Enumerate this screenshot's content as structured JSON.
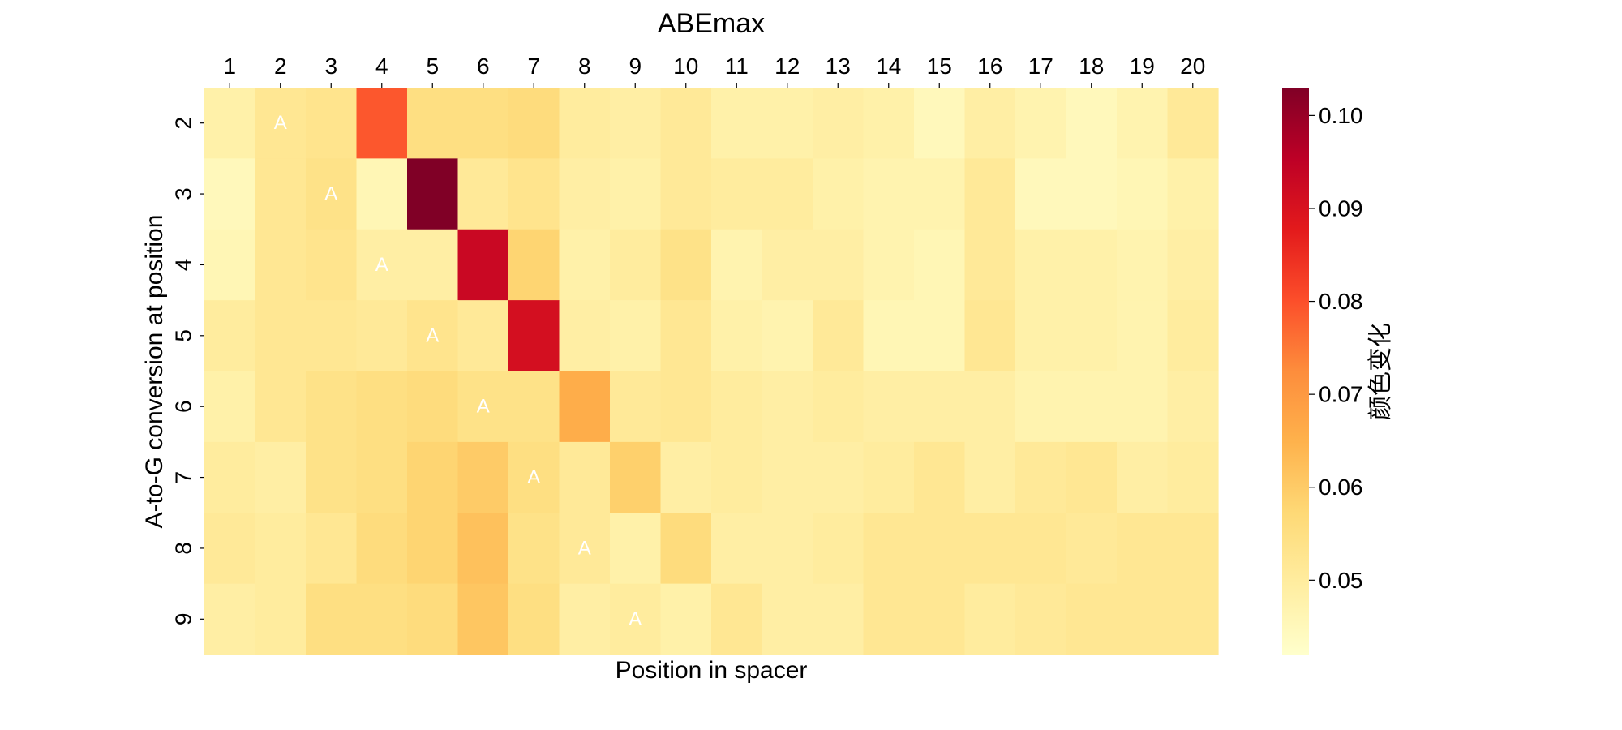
{
  "chart_data": {
    "type": "heatmap",
    "title": "ABEmax",
    "xlabel": "Position in spacer",
    "ylabel": "A-to-G conversion at position",
    "x_categories": [
      "1",
      "2",
      "3",
      "4",
      "5",
      "6",
      "7",
      "8",
      "9",
      "10",
      "11",
      "12",
      "13",
      "14",
      "15",
      "16",
      "17",
      "18",
      "19",
      "20"
    ],
    "y_categories": [
      "2",
      "3",
      "4",
      "5",
      "6",
      "7",
      "8",
      "9"
    ],
    "values": [
      [
        0.048,
        0.052,
        0.053,
        0.079,
        0.055,
        0.055,
        0.056,
        0.05,
        0.049,
        0.051,
        0.048,
        0.048,
        0.049,
        0.048,
        0.045,
        0.049,
        0.047,
        0.045,
        0.047,
        0.051
      ],
      [
        0.045,
        0.052,
        0.054,
        0.046,
        0.103,
        0.051,
        0.053,
        0.049,
        0.048,
        0.051,
        0.05,
        0.05,
        0.048,
        0.047,
        0.047,
        0.051,
        0.045,
        0.045,
        0.046,
        0.048
      ],
      [
        0.046,
        0.052,
        0.053,
        0.049,
        0.049,
        0.093,
        0.058,
        0.048,
        0.05,
        0.054,
        0.047,
        0.049,
        0.049,
        0.047,
        0.046,
        0.051,
        0.048,
        0.048,
        0.047,
        0.049
      ],
      [
        0.05,
        0.052,
        0.052,
        0.051,
        0.053,
        0.051,
        0.091,
        0.049,
        0.048,
        0.052,
        0.048,
        0.047,
        0.051,
        0.046,
        0.046,
        0.052,
        0.048,
        0.048,
        0.047,
        0.05
      ],
      [
        0.048,
        0.052,
        0.054,
        0.055,
        0.056,
        0.054,
        0.054,
        0.066,
        0.051,
        0.052,
        0.05,
        0.049,
        0.05,
        0.049,
        0.049,
        0.049,
        0.047,
        0.047,
        0.047,
        0.049
      ],
      [
        0.05,
        0.049,
        0.054,
        0.055,
        0.058,
        0.06,
        0.055,
        0.051,
        0.059,
        0.049,
        0.05,
        0.049,
        0.049,
        0.05,
        0.052,
        0.049,
        0.051,
        0.052,
        0.049,
        0.05
      ],
      [
        0.051,
        0.05,
        0.052,
        0.056,
        0.058,
        0.062,
        0.054,
        0.051,
        0.048,
        0.056,
        0.049,
        0.049,
        0.05,
        0.052,
        0.052,
        0.052,
        0.052,
        0.051,
        0.052,
        0.052
      ],
      [
        0.049,
        0.05,
        0.055,
        0.055,
        0.056,
        0.061,
        0.055,
        0.049,
        0.05,
        0.048,
        0.052,
        0.049,
        0.049,
        0.052,
        0.052,
        0.05,
        0.051,
        0.052,
        0.052,
        0.052
      ]
    ],
    "annotations": [
      {
        "row": "2",
        "col": "2",
        "text": "A"
      },
      {
        "row": "3",
        "col": "3",
        "text": "A"
      },
      {
        "row": "4",
        "col": "4",
        "text": "A"
      },
      {
        "row": "5",
        "col": "5",
        "text": "A"
      },
      {
        "row": "6",
        "col": "6",
        "text": "A"
      },
      {
        "row": "7",
        "col": "7",
        "text": "A"
      },
      {
        "row": "8",
        "col": "8",
        "text": "A"
      },
      {
        "row": "9",
        "col": "9",
        "text": "A"
      }
    ],
    "colorbar": {
      "label": "颜色变化",
      "vmin": 0.042,
      "vmax": 0.103,
      "ticks": [
        0.05,
        0.06,
        0.07,
        0.08,
        0.09,
        0.1
      ],
      "tick_labels": [
        "0.05",
        "0.06",
        "0.07",
        "0.08",
        "0.09",
        "0.10"
      ]
    },
    "colormap": "YlOrRd",
    "colormap_stops": [
      "#ffffcc",
      "#ffeda0",
      "#fed976",
      "#feb24c",
      "#fd8d3c",
      "#fc4e2a",
      "#e31a1c",
      "#bd0026",
      "#800026"
    ],
    "annotation_color": "#ffffff",
    "x_tick_position": "top",
    "grid": false
  }
}
